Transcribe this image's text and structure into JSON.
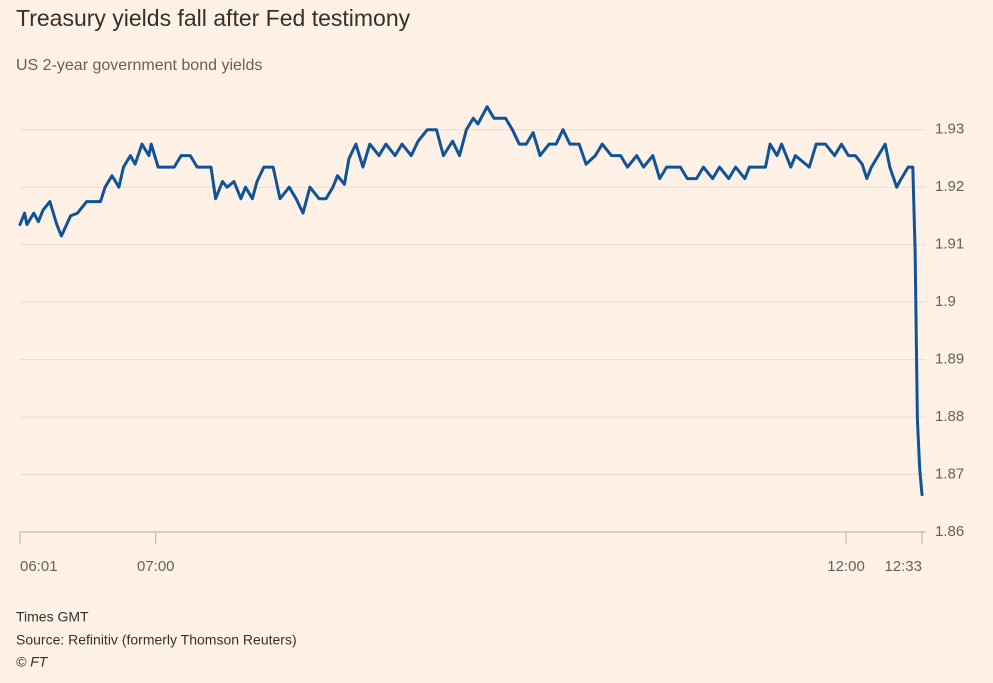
{
  "chart_data": {
    "type": "line",
    "title": "Treasury yields fall after Fed testimony",
    "subtitle": "US 2-year government bond yields",
    "x_note": "Times GMT",
    "source": "Source: Refinitiv (formerly Thomson Reuters)",
    "credit": "© FT",
    "color": "#0f5499",
    "grid": true,
    "xlim": [
      "06:01",
      "12:33"
    ],
    "xticks": [
      "06:01",
      "07:00",
      "12:00",
      "12:33"
    ],
    "ylim": [
      1.86,
      1.935
    ],
    "yticks": [
      1.86,
      1.87,
      1.88,
      1.89,
      1.9,
      1.91,
      1.92,
      1.93
    ],
    "x": [
      "06:01",
      "06:03",
      "06:04",
      "06:07",
      "06:09",
      "06:11",
      "06:14",
      "06:17",
      "06:19",
      "06:23",
      "06:26",
      "06:30",
      "06:36",
      "06:38",
      "06:41",
      "06:44",
      "06:46",
      "06:49",
      "06:51",
      "06:54",
      "06:57",
      "06:58",
      "07:01",
      "07:04",
      "07:08",
      "07:11",
      "07:15",
      "07:18",
      "07:22",
      "07:24",
      "07:26",
      "07:29",
      "07:31",
      "07:34",
      "07:37",
      "07:39",
      "07:42",
      "07:44",
      "07:47",
      "07:51",
      "07:54",
      "07:58",
      "08:01",
      "08:04",
      "08:07",
      "08:11",
      "08:14",
      "08:17",
      "08:19",
      "08:22",
      "08:24",
      "08:27",
      "08:30",
      "08:33",
      "08:37",
      "08:40",
      "08:44",
      "08:47",
      "08:51",
      "08:54",
      "08:58",
      "09:02",
      "09:05",
      "09:09",
      "09:12",
      "09:15",
      "09:18",
      "09:20",
      "09:24",
      "09:27",
      "09:32",
      "09:35",
      "09:38",
      "09:41",
      "09:44",
      "09:47",
      "09:51",
      "09:54",
      "09:57",
      "10:00",
      "10:04",
      "10:07",
      "10:11",
      "10:14",
      "10:18",
      "10:22",
      "10:25",
      "10:29",
      "10:32",
      "10:36",
      "10:39",
      "10:42",
      "10:48",
      "10:51",
      "10:55",
      "10:58",
      "11:02",
      "11:05",
      "11:09",
      "11:12",
      "11:16",
      "11:18",
      "11:25",
      "11:27",
      "11:30",
      "11:32",
      "11:36",
      "11:38",
      "11:44",
      "11:47",
      "11:51",
      "11:55",
      "11:58",
      "12:01",
      "12:04",
      "12:07",
      "12:09",
      "12:11",
      "12:14",
      "12:17",
      "12:19",
      "12:22",
      "12:24",
      "12:27",
      "12:29",
      "12:30",
      "12:31",
      "12:32",
      "12:33"
    ],
    "values": [
      1.9135,
      1.9155,
      1.9135,
      1.9155,
      1.914,
      1.916,
      1.9175,
      1.9135,
      1.9115,
      1.915,
      1.9155,
      1.9175,
      1.9175,
      1.92,
      1.922,
      1.92,
      1.9235,
      1.9255,
      1.924,
      1.9275,
      1.9255,
      1.9275,
      1.9235,
      1.9235,
      1.9235,
      1.9255,
      1.9255,
      1.9235,
      1.9235,
      1.9235,
      1.918,
      1.921,
      1.92,
      1.921,
      1.918,
      1.92,
      1.918,
      1.921,
      1.9235,
      1.9235,
      1.918,
      1.92,
      1.918,
      1.9155,
      1.92,
      1.918,
      1.918,
      1.92,
      1.922,
      1.9205,
      1.925,
      1.9275,
      1.9235,
      1.9275,
      1.9255,
      1.9275,
      1.9255,
      1.9275,
      1.9255,
      1.928,
      1.93,
      1.93,
      1.9255,
      1.928,
      1.9255,
      1.93,
      1.932,
      1.931,
      1.934,
      1.932,
      1.932,
      1.93,
      1.9275,
      1.9275,
      1.9295,
      1.9255,
      1.9275,
      1.9275,
      1.93,
      1.9275,
      1.9275,
      1.924,
      1.9255,
      1.9275,
      1.9255,
      1.9255,
      1.9235,
      1.9255,
      1.9235,
      1.9255,
      1.9215,
      1.9235,
      1.9235,
      1.9215,
      1.9215,
      1.9235,
      1.9215,
      1.9235,
      1.9215,
      1.9235,
      1.9215,
      1.9235,
      1.9235,
      1.9275,
      1.9255,
      1.9275,
      1.9235,
      1.9255,
      1.9235,
      1.9275,
      1.9275,
      1.9255,
      1.9275,
      1.9255,
      1.9255,
      1.924,
      1.9215,
      1.9235,
      1.9255,
      1.9275,
      1.9235,
      1.92,
      1.9215,
      1.9235,
      1.9235,
      1.909,
      1.8795,
      1.871,
      1.8665
    ]
  }
}
